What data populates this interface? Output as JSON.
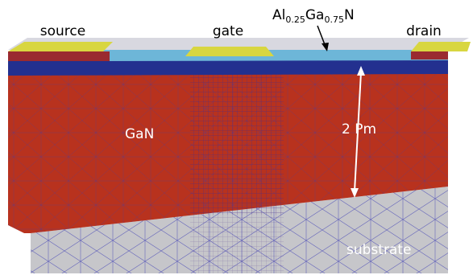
{
  "labels": {
    "source": "source",
    "gate": "gate",
    "formula": [
      "Al",
      "0.25",
      "Ga",
      "0.75",
      "N"
    ],
    "drain": "drain",
    "gan": "GaN",
    "thickness": "2 Pm",
    "substrate": "substrate"
  }
}
